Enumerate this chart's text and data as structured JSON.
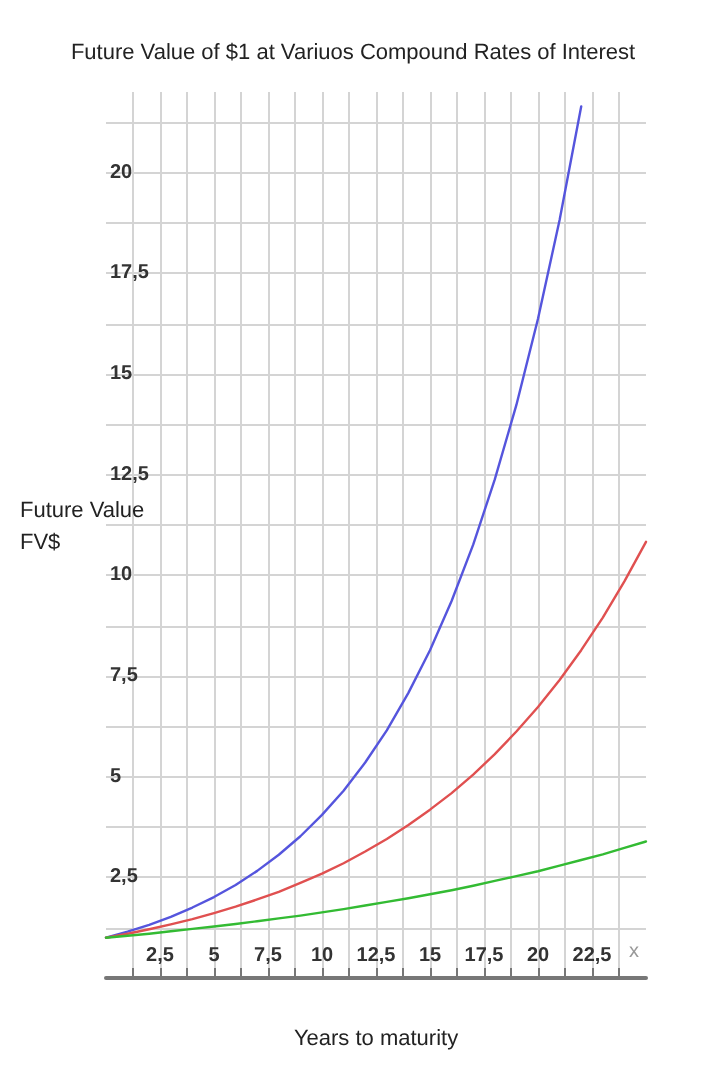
{
  "chart_data": {
    "type": "line",
    "title": "Future Value of $1 at Variuos Compound Rates of Interest",
    "xlabel": "Years to maturity",
    "ylabel": "Future Value\nFV$",
    "annotations": [
      "x"
    ],
    "x": [
      0,
      1,
      2,
      3,
      4,
      5,
      6,
      7,
      8,
      9,
      10,
      11,
      12,
      13,
      14,
      15,
      16,
      17,
      18,
      19,
      20,
      21,
      22,
      23,
      24,
      25
    ],
    "series": [
      {
        "color": "#5555dd",
        "values": [
          1,
          1.15,
          1.32,
          1.52,
          1.75,
          2.01,
          2.31,
          2.66,
          3.06,
          3.52,
          4.05,
          4.65,
          5.35,
          6.15,
          7.08,
          8.14,
          9.36,
          10.76,
          12.38,
          14.23,
          16.37,
          18.82,
          21.64,
          null,
          null,
          null
        ]
      },
      {
        "color": "#e05050",
        "values": [
          1,
          1.1,
          1.21,
          1.33,
          1.46,
          1.61,
          1.77,
          1.95,
          2.14,
          2.36,
          2.59,
          2.85,
          3.14,
          3.45,
          3.8,
          4.18,
          4.59,
          5.05,
          5.56,
          6.12,
          6.73,
          7.4,
          8.14,
          8.95,
          9.85,
          10.83
        ]
      },
      {
        "color": "#33bb33",
        "values": [
          1,
          1.05,
          1.1,
          1.16,
          1.22,
          1.28,
          1.34,
          1.41,
          1.48,
          1.55,
          1.63,
          1.71,
          1.8,
          1.89,
          1.98,
          2.08,
          2.18,
          2.29,
          2.41,
          2.53,
          2.65,
          2.79,
          2.93,
          3.07,
          3.23,
          3.39
        ]
      }
    ],
    "xlim": [
      0,
      25
    ],
    "xticks": [
      {
        "value": 1.25,
        "label": null
      },
      {
        "value": 2.5,
        "label": "2,5"
      },
      {
        "value": 3.75,
        "label": null
      },
      5,
      {
        "value": 6.25,
        "label": null
      },
      {
        "value": 7.5,
        "label": "7,5"
      },
      {
        "value": 8.75,
        "label": null
      },
      10,
      {
        "value": 11.25,
        "label": null
      },
      {
        "value": 12.5,
        "label": "12,5"
      },
      {
        "value": 13.75,
        "label": null
      },
      15,
      {
        "value": 16.25,
        "label": null
      },
      {
        "value": 17.5,
        "label": "17,5"
      },
      {
        "value": 18.75,
        "label": null
      },
      20,
      {
        "value": 21.25,
        "label": null
      },
      {
        "value": 22.5,
        "label": "22,5"
      },
      {
        "value": 23.75,
        "label": null
      }
    ],
    "ylim": [
      0,
      22
    ],
    "yticks": [
      {
        "value": 1.25,
        "label": null
      },
      {
        "value": 2.5,
        "label": "2,5"
      },
      {
        "value": 3.75,
        "label": null
      },
      5,
      {
        "value": 6.25,
        "label": null
      },
      {
        "value": 7.5,
        "label": "7,5"
      },
      {
        "value": 8.75,
        "label": null
      },
      10,
      {
        "value": 11.25,
        "label": null
      },
      {
        "value": 12.5,
        "label": "12,5"
      },
      {
        "value": 13.75,
        "label": null
      },
      15,
      {
        "value": 16.25,
        "label": null
      },
      {
        "value": 17.5,
        "label": "17,5"
      },
      {
        "value": 18.75,
        "label": null
      },
      20,
      {
        "value": 21.25,
        "label": null
      }
    ],
    "grid": true,
    "marker": "none",
    "line_style": "solid"
  }
}
